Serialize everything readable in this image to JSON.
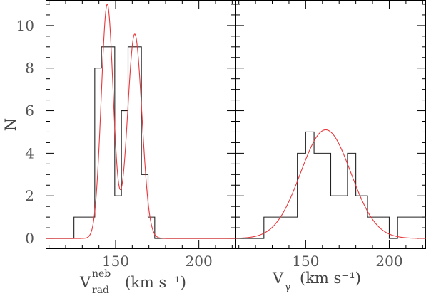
{
  "chart_data": [
    {
      "type": "histogram",
      "ylabel": "N",
      "xlabel_base": "V",
      "xlabel_sup": "neb",
      "xlabel_sub": "rad",
      "xlabel_units": "(km s⁻¹)",
      "xlim": [
        108,
        222
      ],
      "ylim": [
        -0.5,
        11.2
      ],
      "xticks": [
        150,
        200
      ],
      "yticks": [
        0,
        2,
        4,
        6,
        8,
        10
      ],
      "grid": false,
      "series": [
        {
          "kind": "histogram",
          "bin_edges": [
            125,
            137.5,
            141.5,
            145.5,
            149.5,
            153.5,
            157.5,
            161.5,
            165.5,
            169.5,
            173.5,
            222
          ],
          "counts": [
            1,
            8,
            9,
            9,
            2,
            6,
            9,
            9,
            3,
            1,
            0
          ],
          "baseline_start": 108,
          "color": "#222222"
        },
        {
          "kind": "fit",
          "description": "double gaussian fit",
          "components": [
            {
              "amp": 11.0,
              "mu": 145.0,
              "sigma": 3.6
            },
            {
              "amp": 9.6,
              "mu": 161.5,
              "sigma": 4.3
            }
          ],
          "color": "#e8383c"
        }
      ]
    },
    {
      "type": "histogram",
      "ylabel": "",
      "xlabel_base": "V",
      "xlabel_sub": "γ",
      "xlabel_units": "(km s⁻¹)",
      "xlim": [
        108,
        222
      ],
      "ylim": [
        -0.5,
        11.2
      ],
      "xticks": [
        150,
        200
      ],
      "yticks": [
        0,
        2,
        4,
        6,
        8,
        10
      ],
      "grid": false,
      "series": [
        {
          "kind": "histogram",
          "bin_edges": [
            125,
            145,
            150,
            155,
            165,
            175,
            180,
            187,
            200,
            205,
            222
          ],
          "counts": [
            1,
            4,
            5,
            4,
            2,
            4,
            2,
            1,
            0,
            1
          ],
          "baseline_start": 108,
          "color": "#222222"
        },
        {
          "kind": "fit",
          "description": "single gaussian fit",
          "components": [
            {
              "amp": 5.1,
              "mu": 162.0,
              "sigma": 15.0
            }
          ],
          "color": "#e8383c"
        }
      ]
    }
  ]
}
